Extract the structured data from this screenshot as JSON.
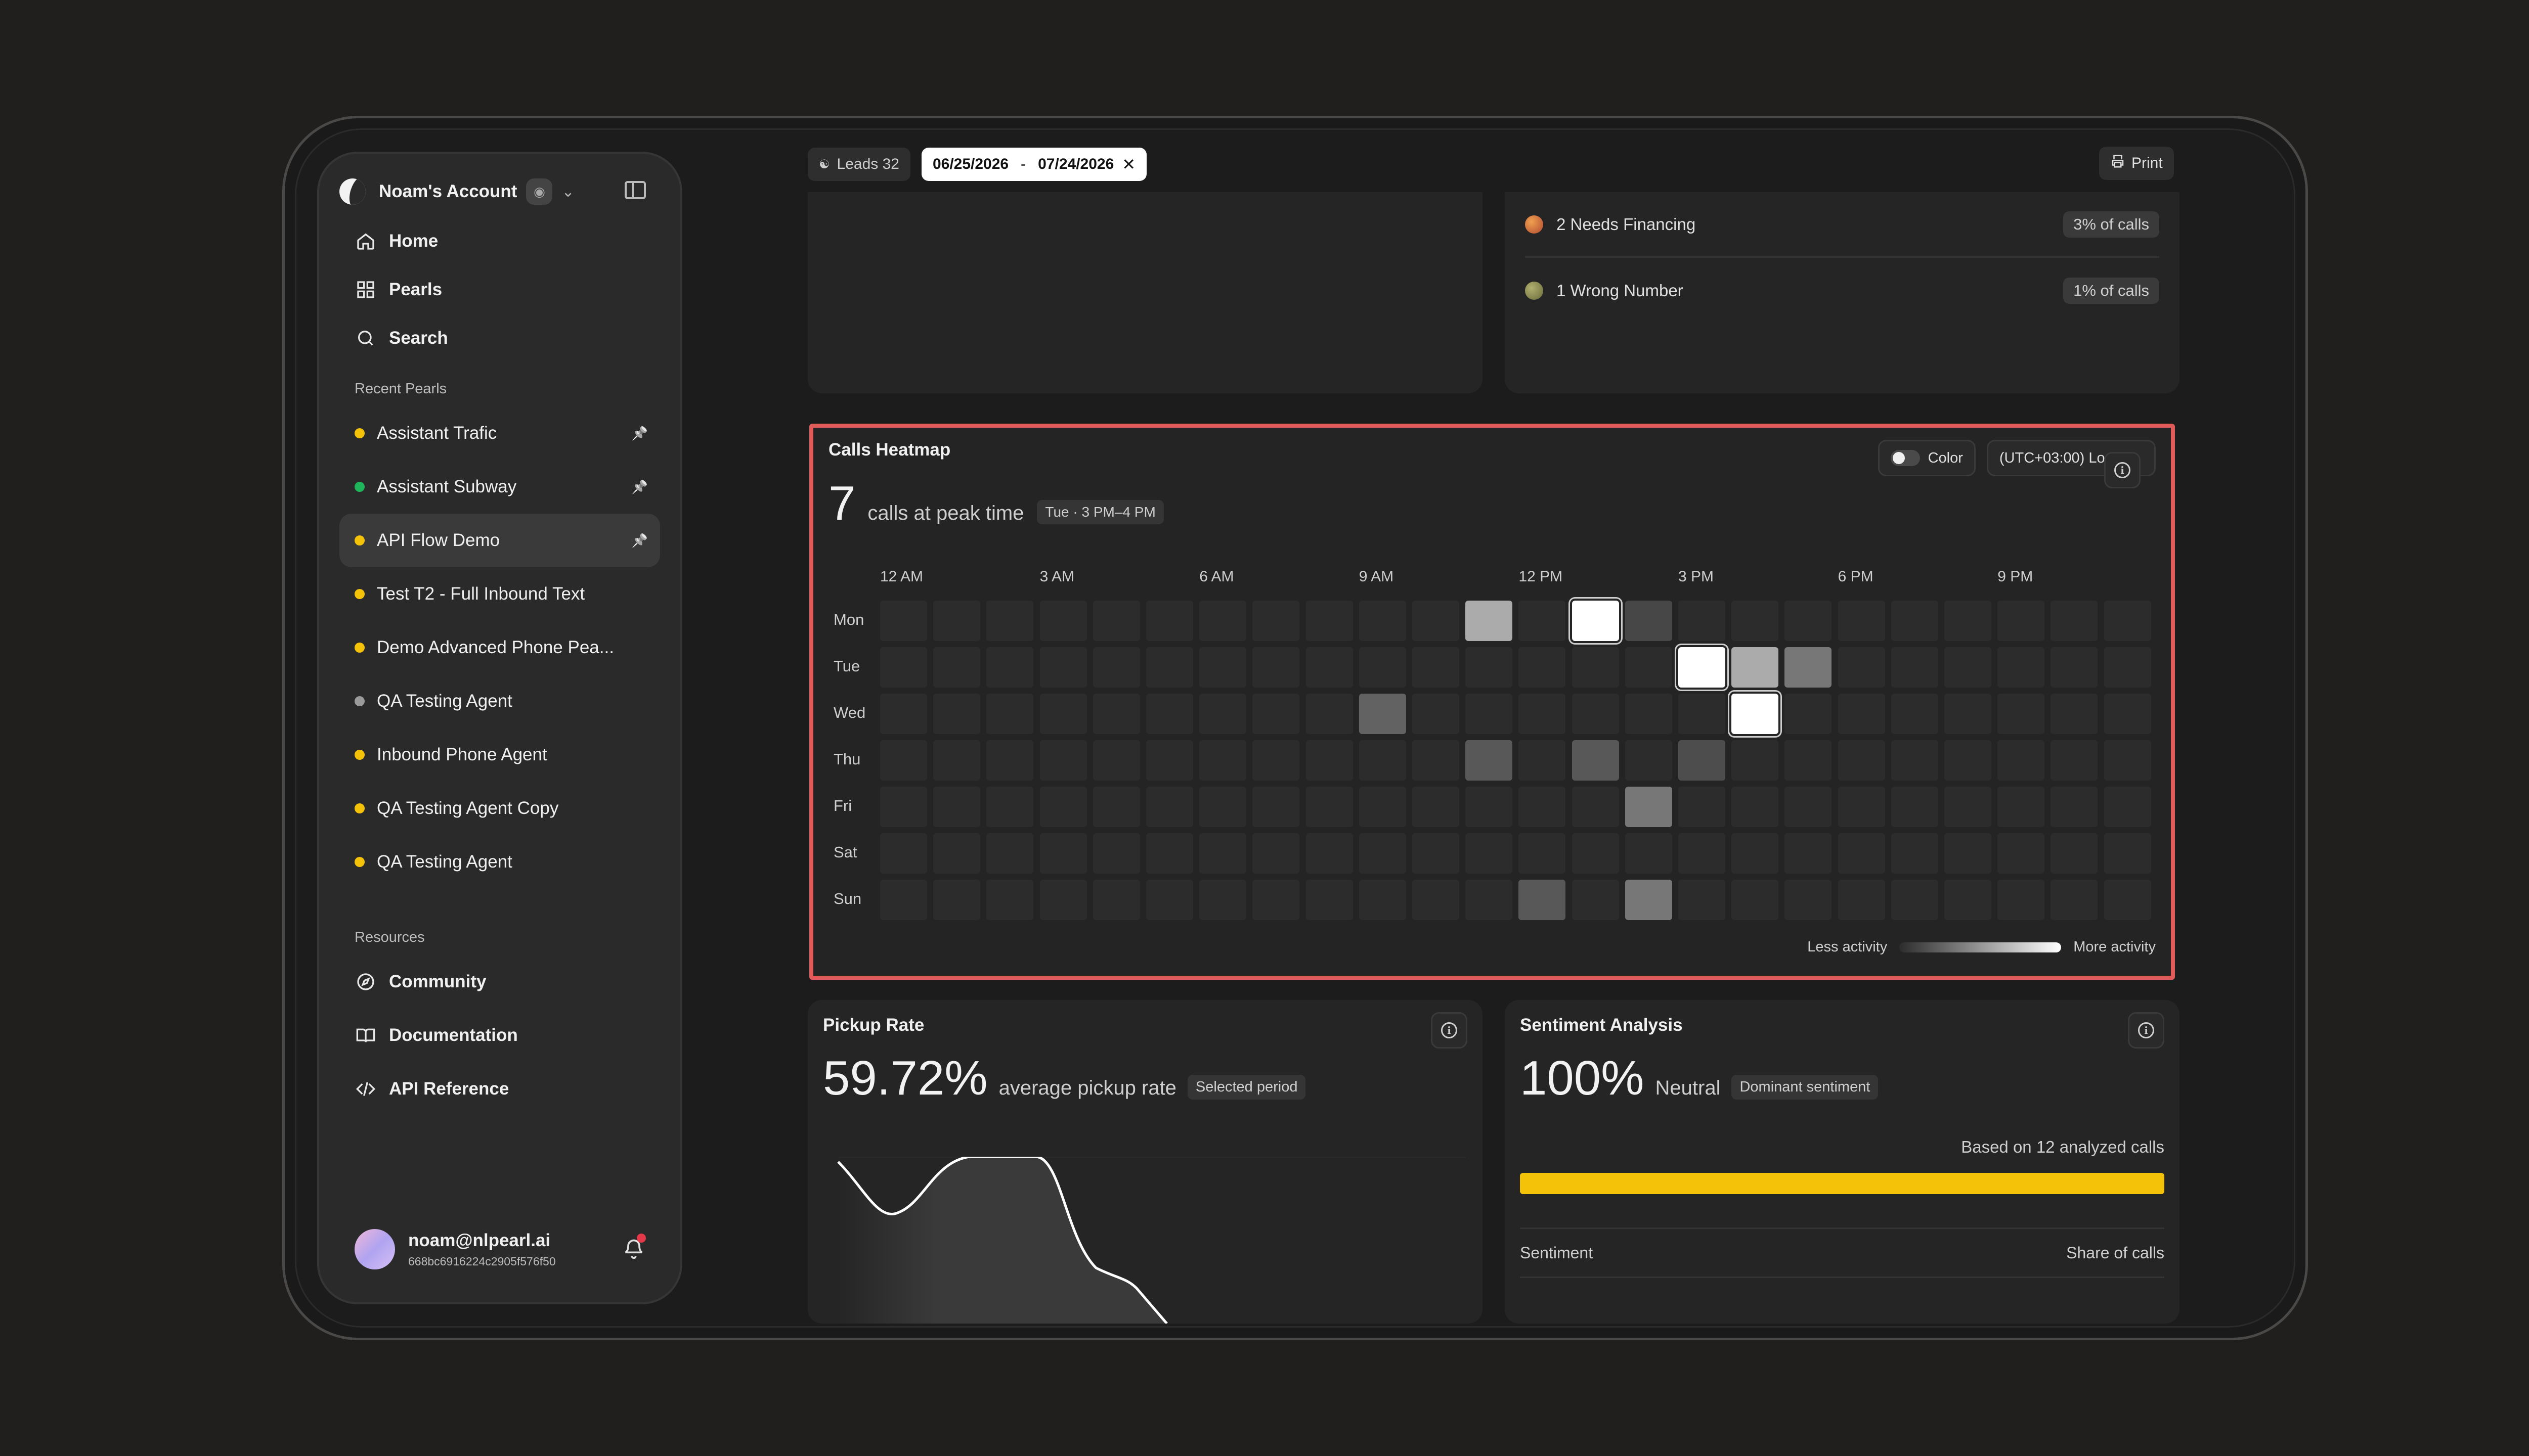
{
  "account": {
    "name": "Noam's Account"
  },
  "nav": [
    {
      "label": "Home",
      "icon": "home-icon"
    },
    {
      "label": "Pearls",
      "icon": "grid-icon"
    },
    {
      "label": "Search",
      "icon": "search-icon"
    }
  ],
  "recent_label": "Recent Pearls",
  "pearls": [
    {
      "label": "Assistant Trafic",
      "color": "#f5c20a",
      "pinned": true
    },
    {
      "label": "Assistant Subway",
      "color": "#1fb55a",
      "pinned": true
    },
    {
      "label": "API Flow Demo",
      "color": "#f5c20a",
      "pinned": true,
      "active": true
    },
    {
      "label": "Test T2 - Full Inbound Text",
      "color": "#f5c20a"
    },
    {
      "label": "Demo Advanced Phone Pea...",
      "color": "#f5c20a"
    },
    {
      "label": "QA Testing Agent",
      "color": "#9a9a9a"
    },
    {
      "label": "Inbound Phone Agent",
      "color": "#f5c20a"
    },
    {
      "label": "QA Testing Agent Copy",
      "color": "#f5c20a"
    },
    {
      "label": "QA Testing Agent",
      "color": "#f5c20a"
    }
  ],
  "resources_label": "Resources",
  "resources": [
    {
      "label": "Community",
      "icon": "compass-icon"
    },
    {
      "label": "Documentation",
      "icon": "book-icon"
    },
    {
      "label": "API Reference",
      "icon": "code-icon"
    }
  ],
  "user": {
    "email": "noam@nlpearl.ai",
    "id": "668bc6916224c2905f576f50"
  },
  "topbar": {
    "leads_label": "Leads 32",
    "date_from": "06/25/2026",
    "date_to": "07/24/2026",
    "print_label": "Print"
  },
  "reasons": [
    {
      "label": "2 Needs Financing",
      "pct": "3% of calls",
      "color": "#c86a3a"
    },
    {
      "label": "1 Wrong Number",
      "pct": "1% of calls",
      "color": "#8a8a4a"
    }
  ],
  "heatmap": {
    "title": "Calls Heatmap",
    "peak_value": "7",
    "peak_text": "calls at peak time",
    "peak_tag": "Tue · 3 PM–4 PM",
    "color_toggle": "Color",
    "timezone": "(UTC+03:00) Local",
    "hour_labels": [
      "12 AM",
      "3 AM",
      "6 AM",
      "9 AM",
      "12 PM",
      "3 PM",
      "6 PM",
      "9 PM"
    ],
    "days": [
      "Mon",
      "Tue",
      "Wed",
      "Thu",
      "Fri",
      "Sat",
      "Sun"
    ],
    "less": "Less activity",
    "more": "More activity",
    "cells": [
      {
        "day": 0,
        "hour": 11,
        "level": 0.6
      },
      {
        "day": 0,
        "hour": 13,
        "level": 1.0
      },
      {
        "day": 0,
        "hour": 14,
        "level": 0.12
      },
      {
        "day": 1,
        "hour": 15,
        "level": 1.0
      },
      {
        "day": 1,
        "hour": 16,
        "level": 0.6
      },
      {
        "day": 1,
        "hour": 17,
        "level": 0.35
      },
      {
        "day": 2,
        "hour": 9,
        "level": 0.25
      },
      {
        "day": 2,
        "hour": 16,
        "level": 1.0
      },
      {
        "day": 3,
        "hour": 11,
        "level": 0.2
      },
      {
        "day": 3,
        "hour": 13,
        "level": 0.2
      },
      {
        "day": 3,
        "hour": 15,
        "level": 0.15
      },
      {
        "day": 4,
        "hour": 14,
        "level": 0.35
      },
      {
        "day": 6,
        "hour": 12,
        "level": 0.2
      },
      {
        "day": 6,
        "hour": 14,
        "level": 0.35
      }
    ]
  },
  "pickup": {
    "title": "Pickup Rate",
    "value": "59.72%",
    "text": "average pickup rate",
    "tag": "Selected period"
  },
  "sentiment": {
    "title": "Sentiment Analysis",
    "value": "100%",
    "text": "Neutral",
    "tag": "Dominant sentiment",
    "based": "Based on 12 analyzed calls",
    "col_sentiment": "Sentiment",
    "col_share": "Share of calls",
    "bar_fraction": 1.0,
    "bar_color": "#f5c20a"
  }
}
